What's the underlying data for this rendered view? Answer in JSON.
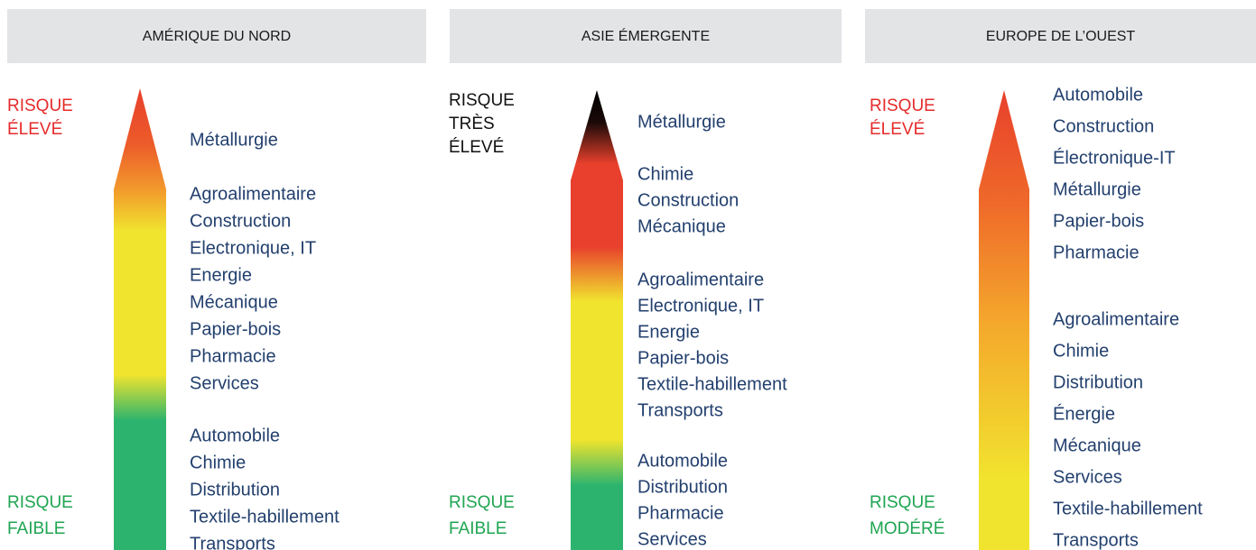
{
  "panels": [
    {
      "region": "AMÉRIQUE DU NORD",
      "top_label": [
        "RISQUE",
        "ÉLEVÉ"
      ],
      "bottom_label": [
        "RISQUE",
        "FAIBLE"
      ],
      "groups": [
        [
          "Métallurgie"
        ],
        [
          "Agroalimentaire",
          "Construction",
          "Electronique, IT",
          "Energie",
          "Mécanique",
          "Papier-bois",
          "Pharmacie",
          "Services"
        ],
        [
          "Automobile",
          "Chimie",
          "Distribution",
          "Textile-habillement",
          "Transports"
        ]
      ]
    },
    {
      "region": "ASIE ÉMERGENTE",
      "top_label": [
        "RISQUE",
        "TRÈS",
        "ÉLEVÉ"
      ],
      "bottom_label": [
        "RISQUE",
        "FAIBLE"
      ],
      "groups": [
        [
          "Métallurgie"
        ],
        [
          "Chimie",
          "Construction",
          "Mécanique"
        ],
        [
          "Agroalimentaire",
          "Electronique, IT",
          "Energie",
          "Papier-bois",
          "Textile-habillement",
          "Transports"
        ],
        [
          "Automobile",
          "Distribution",
          "Pharmacie",
          "Services"
        ]
      ]
    },
    {
      "region": "EUROPE DE L’OUEST",
      "top_label": [
        "RISQUE",
        "ÉLEVÉ"
      ],
      "bottom_label": [
        "RISQUE",
        "MODÉRÉ"
      ],
      "groups": [
        [
          "Automobile",
          "Construction",
          "Électronique-IT",
          "Métallurgie",
          "Papier-bois",
          "Pharmacie"
        ],
        [
          "Agroalimentaire",
          "Chimie",
          "Distribution",
          "Énergie",
          "Mécanique",
          "Services",
          "Textile-habillement",
          "Transports"
        ]
      ]
    }
  ]
}
